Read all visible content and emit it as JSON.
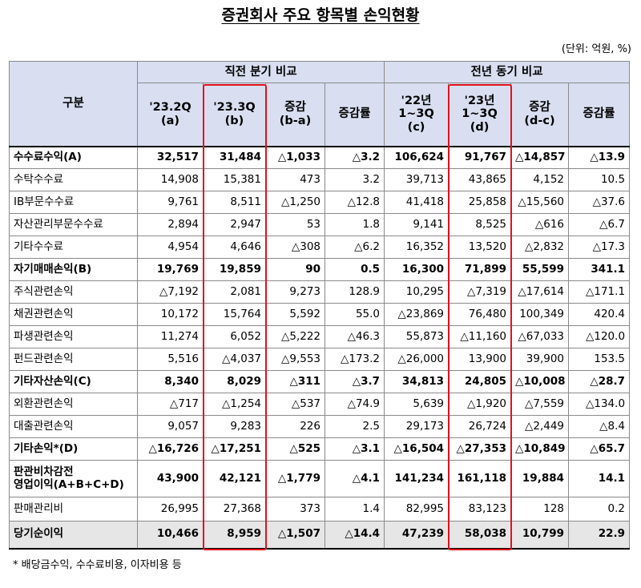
{
  "title": "증권회사 주요 항목별 손익현황",
  "unit": "(단위: 억원, %)",
  "header": {
    "category": "구분",
    "group1": "직전 분기 비교",
    "group2": "전년 동기 비교",
    "cols": [
      [
        "'23.2Q",
        "(a)"
      ],
      [
        "'23.3Q",
        "(b)"
      ],
      [
        "증감",
        "(b-a)"
      ],
      [
        "증감률"
      ],
      [
        "'22년",
        "1~3Q",
        "(c)"
      ],
      [
        "'23년",
        "1~3Q",
        "(d)"
      ],
      [
        "증감",
        "(d-c)"
      ],
      [
        "증감률"
      ]
    ]
  },
  "rows": [
    {
      "label": [
        "수수료수익(A)"
      ],
      "type": "group",
      "values": [
        "32,517",
        "31,484",
        "△1,033",
        "△3.2",
        "106,624",
        "91,767",
        "△14,857",
        "△13.9"
      ]
    },
    {
      "label": [
        "수탁수수료"
      ],
      "type": "sub",
      "values": [
        "14,908",
        "15,381",
        "473",
        "3.2",
        "39,713",
        "43,865",
        "4,152",
        "10.5"
      ]
    },
    {
      "label": [
        "IB부문수수료"
      ],
      "type": "sub",
      "values": [
        "9,761",
        "8,511",
        "△1,250",
        "△12.8",
        "41,418",
        "25,858",
        "△15,560",
        "△37.6"
      ]
    },
    {
      "label": [
        "자산관리부문수수료"
      ],
      "type": "sub",
      "values": [
        "2,894",
        "2,947",
        "53",
        "1.8",
        "9,141",
        "8,525",
        "△616",
        "△6.7"
      ]
    },
    {
      "label": [
        "기타수수료"
      ],
      "type": "sub",
      "values": [
        "4,954",
        "4,646",
        "△308",
        "△6.2",
        "16,352",
        "13,520",
        "△2,832",
        "△17.3"
      ]
    },
    {
      "label": [
        "자기매매손익(B)"
      ],
      "type": "group",
      "values": [
        "19,769",
        "19,859",
        "90",
        "0.5",
        "16,300",
        "71,899",
        "55,599",
        "341.1"
      ]
    },
    {
      "label": [
        "주식관련손익"
      ],
      "type": "sub",
      "values": [
        "△7,192",
        "2,081",
        "9,273",
        "128.9",
        "10,295",
        "△7,319",
        "△17,614",
        "△171.1"
      ]
    },
    {
      "label": [
        "채권관련손익"
      ],
      "type": "sub",
      "values": [
        "10,172",
        "15,764",
        "5,592",
        "55.0",
        "△23,869",
        "76,480",
        "100,349",
        "420.4"
      ]
    },
    {
      "label": [
        "파생관련손익"
      ],
      "type": "sub",
      "values": [
        "11,274",
        "6,052",
        "△5,222",
        "△46.3",
        "55,873",
        "△11,160",
        "△67,033",
        "△120.0"
      ]
    },
    {
      "label": [
        "펀드관련손익"
      ],
      "type": "sub",
      "values": [
        "5,516",
        "△4,037",
        "△9,553",
        "△173.2",
        "△26,000",
        "13,900",
        "39,900",
        "153.5"
      ]
    },
    {
      "label": [
        "기타자산손익(C)"
      ],
      "type": "group",
      "values": [
        "8,340",
        "8,029",
        "△311",
        "△3.7",
        "34,813",
        "24,805",
        "△10,008",
        "△28.7"
      ]
    },
    {
      "label": [
        "외환관련손익"
      ],
      "type": "sub",
      "values": [
        "△717",
        "△1,254",
        "△537",
        "△74.9",
        "5,639",
        "△1,920",
        "△7,559",
        "△134.0"
      ]
    },
    {
      "label": [
        "대출관련손익"
      ],
      "type": "sub",
      "values": [
        "9,057",
        "9,283",
        "226",
        "2.5",
        "29,173",
        "26,724",
        "△2,449",
        "△8.4"
      ]
    },
    {
      "label": [
        "기타손익*(D)"
      ],
      "type": "group",
      "values": [
        "△16,726",
        "△17,251",
        "△525",
        "△3.1",
        "△16,504",
        "△27,353",
        "△10,849",
        "△65.7"
      ]
    },
    {
      "label": [
        "판관비차감전",
        "영업이익(A+B+C+D)"
      ],
      "type": "group",
      "values": [
        "43,900",
        "42,121",
        "△1,779",
        "△4.1",
        "141,234",
        "161,118",
        "19,884",
        "14.1"
      ]
    },
    {
      "label": [
        "판매관리비"
      ],
      "type": "plain",
      "values": [
        "26,995",
        "27,368",
        "373",
        "1.4",
        "82,995",
        "83,123",
        "128",
        "0.2"
      ]
    },
    {
      "label": [
        "당기순이익"
      ],
      "type": "net",
      "values": [
        "10,466",
        "8,959",
        "△1,507",
        "△14.4",
        "47,239",
        "58,038",
        "10,799",
        "22.9"
      ]
    }
  ],
  "footnote": "* 배당금수익, 수수료비용, 이자비용 등",
  "colors": {
    "header_bg": "#d9dff1",
    "highlight_border": "#e0121b",
    "net_row_bg": "#e6e6e6"
  }
}
